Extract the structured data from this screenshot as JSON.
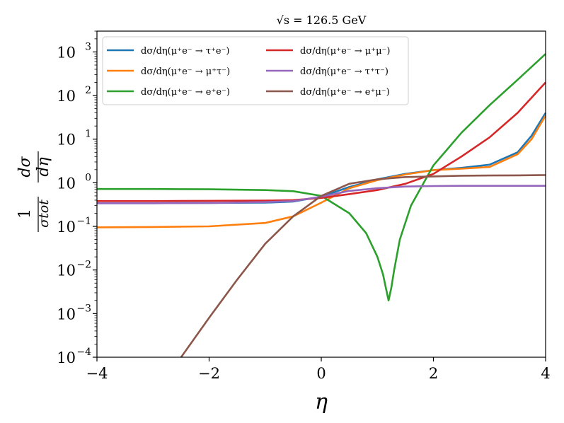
{
  "chart_data": {
    "type": "line",
    "title": "√s = 126.5 GeV",
    "xlabel": "η",
    "ylabel": "1/σtot dσ/dη",
    "ylabel_num": "1",
    "ylabel_den": "σtot",
    "ylabel_dnum": "dσ",
    "ylabel_dden": "dη",
    "xlim": [
      -4,
      4
    ],
    "ylim": [
      0.0001,
      3000
    ],
    "yscale": "log",
    "grid": false,
    "legend_position": "top-left",
    "xticks": [
      "−4",
      "−2",
      "0",
      "2",
      "4"
    ],
    "xtick_values": [
      -4,
      -2,
      0,
      2,
      4
    ],
    "yticks": [
      {
        "base": "10",
        "exp": "−4",
        "value": 0.0001
      },
      {
        "base": "10",
        "exp": "−3",
        "value": 0.001
      },
      {
        "base": "10",
        "exp": "−2",
        "value": 0.01
      },
      {
        "base": "10",
        "exp": "−1",
        "value": 0.1
      },
      {
        "base": "10",
        "exp": "0",
        "value": 1
      },
      {
        "base": "10",
        "exp": "1",
        "value": 10
      },
      {
        "base": "10",
        "exp": "2",
        "value": 100
      },
      {
        "base": "10",
        "exp": "3",
        "value": 1000
      }
    ],
    "series": [
      {
        "name": "dσ/dη(μ⁺e⁻ → τ⁺e⁻)",
        "color": "#1f77b4",
        "x": [
          -4,
          -3,
          -2,
          -1,
          -0.5,
          0,
          0.5,
          1,
          1.5,
          2,
          2.5,
          3,
          3.5,
          3.75,
          4
        ],
        "y": [
          0.34,
          0.34,
          0.345,
          0.35,
          0.37,
          0.48,
          0.8,
          1.2,
          1.6,
          1.95,
          2.2,
          2.6,
          5,
          12,
          40
        ]
      },
      {
        "name": "dσ/dη(μ⁺e⁻ → μ⁺τ⁻)",
        "color": "#ff7f0e",
        "x": [
          -4,
          -3,
          -2,
          -1,
          -0.5,
          0,
          0.5,
          1,
          1.5,
          2,
          2.5,
          3,
          3.5,
          3.75,
          4
        ],
        "y": [
          0.095,
          0.097,
          0.1,
          0.12,
          0.17,
          0.35,
          0.75,
          1.15,
          1.55,
          1.95,
          2.1,
          2.3,
          4.5,
          10,
          35
        ]
      },
      {
        "name": "dσ/dη(μ⁺e⁻ → e⁺e⁻)",
        "color": "#2ca02c",
        "x": [
          -4,
          -3,
          -2,
          -1,
          -0.5,
          0,
          0.5,
          0.8,
          1.0,
          1.1,
          1.15,
          1.2,
          1.25,
          1.3,
          1.4,
          1.6,
          2,
          2.5,
          3,
          3.5,
          4
        ],
        "y": [
          0.72,
          0.72,
          0.71,
          0.68,
          0.64,
          0.5,
          0.2,
          0.07,
          0.02,
          0.008,
          0.004,
          0.002,
          0.004,
          0.01,
          0.05,
          0.3,
          2.5,
          14,
          60,
          230,
          900
        ]
      },
      {
        "name": "dσ/dη(μ⁺e⁻ → μ⁺μ⁻)",
        "color": "#d62728",
        "x": [
          -4,
          -3,
          -2,
          -1,
          -0.5,
          0,
          0.5,
          1,
          1.5,
          2,
          2.5,
          3,
          3.5,
          4
        ],
        "y": [
          0.38,
          0.38,
          0.385,
          0.39,
          0.4,
          0.45,
          0.55,
          0.68,
          0.95,
          1.6,
          4,
          11,
          40,
          200
        ]
      },
      {
        "name": "dσ/dη(μ⁺e⁻ → τ⁺τ⁻)",
        "color": "#9467bd",
        "x": [
          -4,
          -3,
          -2,
          -1,
          -0.5,
          0,
          0.5,
          1,
          1.5,
          2,
          2.5,
          3,
          3.5,
          4
        ],
        "y": [
          0.34,
          0.34,
          0.345,
          0.36,
          0.38,
          0.48,
          0.65,
          0.75,
          0.82,
          0.84,
          0.85,
          0.85,
          0.85,
          0.85
        ]
      },
      {
        "name": "dσ/dη(μ⁺e⁻ → e⁺μ⁻)",
        "color": "#8c564b",
        "x": [
          -2.5,
          -2,
          -1.5,
          -1,
          -0.5,
          0,
          0.5,
          1,
          1.5,
          2,
          2.5,
          3,
          3.5,
          4
        ],
        "y": [
          0.0001,
          0.0008,
          0.006,
          0.04,
          0.17,
          0.5,
          0.95,
          1.2,
          1.35,
          1.4,
          1.45,
          1.47,
          1.48,
          1.5
        ]
      }
    ]
  }
}
